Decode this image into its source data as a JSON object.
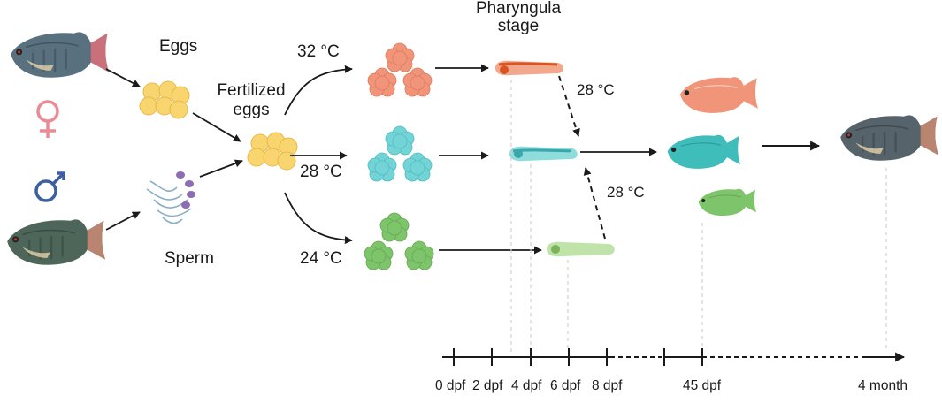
{
  "labels": {
    "eggs": "Eggs",
    "sperm": "Sperm",
    "fertilized": [
      "Fertilized",
      "eggs"
    ],
    "pharyngula": [
      "Pharyngula",
      "stage"
    ]
  },
  "temperatures": {
    "high": "32 °C",
    "mid": "28 °C",
    "low": "24 °C",
    "shift_top": "28 °C",
    "shift_bottom": "28 °C"
  },
  "symbols": {
    "female": "♀",
    "male": "♂"
  },
  "timeline": {
    "ticks": [
      "0 dpf",
      "2 dpf",
      "4 dpf",
      "6 dpf",
      "8 dpf",
      "45 dpf",
      "4 month"
    ]
  },
  "colors": {
    "high_temp": "#f0957a",
    "mid_temp": "#72d4d6",
    "low_temp": "#7ec46a",
    "egg_yellow": "#f8d56e",
    "female_symbol": "#e88b94",
    "male_symbol": "#3c5fa0",
    "arrow": "#1a1a1a",
    "fish_body": "#7d8a96"
  },
  "icons": [
    "tilapia-fish-icon",
    "egg-cluster-icon",
    "sperm-icon",
    "embryo-cluster-icon",
    "larva-icon"
  ]
}
